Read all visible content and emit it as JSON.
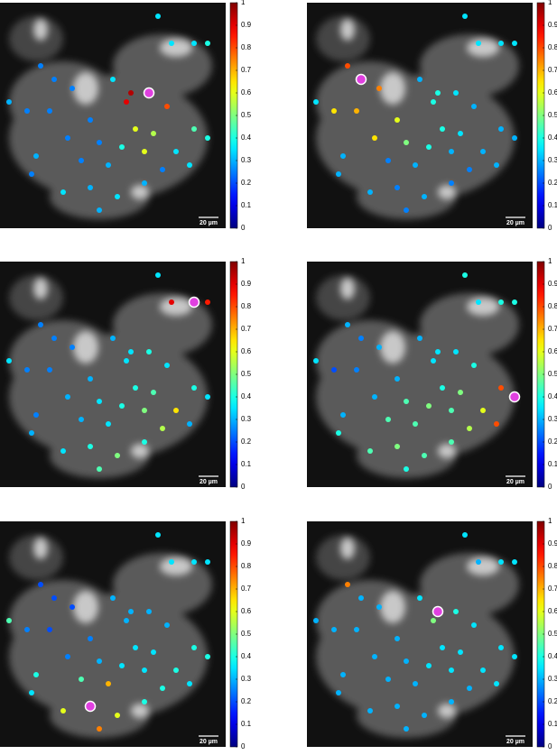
{
  "cells": {
    "xlim": [
      0,
      250
    ],
    "ylim": [
      0,
      250
    ],
    "x": [
      175,
      190,
      215,
      230,
      60,
      80,
      125,
      140,
      165,
      185,
      30,
      55,
      100,
      150,
      170,
      215,
      230,
      75,
      110,
      135,
      160,
      195,
      10,
      40,
      90,
      120,
      180,
      210,
      70,
      100,
      130,
      160,
      110,
      35,
      145,
      45
    ],
    "y": [
      15,
      45,
      45,
      45,
      85,
      95,
      85,
      110,
      100,
      115,
      120,
      120,
      130,
      140,
      145,
      140,
      150,
      150,
      155,
      160,
      165,
      165,
      110,
      170,
      175,
      180,
      185,
      180,
      210,
      205,
      215,
      200,
      230,
      190,
      100,
      70
    ]
  },
  "chart_data": [
    {
      "type": "scatter",
      "colormap": "jet",
      "clim": [
        0,
        1
      ],
      "cticks": [
        0,
        0.1,
        0.2,
        0.3,
        0.4,
        0.5,
        0.6,
        0.7,
        0.8,
        0.9,
        1
      ],
      "scalebar_label": "20 µm",
      "reference": 8,
      "values": [
        0.35,
        0.35,
        0.35,
        0.4,
        0.25,
        0.25,
        0.35,
        0.9,
        1,
        0.8,
        0.25,
        0.25,
        0.25,
        0.6,
        0.55,
        0.45,
        0.4,
        0.25,
        0.25,
        0.4,
        0.6,
        0.35,
        0.3,
        0.3,
        0.25,
        0.3,
        0.25,
        0.35,
        0.35,
        0.3,
        0.35,
        0.3,
        0.3,
        0.25,
        0.95,
        0.25
      ]
    },
    {
      "type": "scatter",
      "colormap": "jet",
      "clim": [
        0,
        1
      ],
      "cticks": [
        0,
        0.1,
        0.2,
        0.3,
        0.4,
        0.5,
        0.6,
        0.7,
        0.8,
        0.9,
        1
      ],
      "scalebar_label": "20 µm",
      "reference": 4,
      "values": [
        0.35,
        0.35,
        0.35,
        0.35,
        1,
        0.75,
        0.3,
        0.4,
        0.35,
        0.3,
        0.65,
        0.7,
        0.6,
        0.4,
        0.35,
        0.3,
        0.3,
        0.65,
        0.5,
        0.4,
        0.3,
        0.3,
        0.35,
        0.3,
        0.25,
        0.3,
        0.25,
        0.3,
        0.3,
        0.25,
        0.3,
        0.25,
        0.25,
        0.3,
        0.4,
        0.8
      ]
    },
    {
      "type": "scatter",
      "colormap": "jet",
      "clim": [
        0,
        1
      ],
      "cticks": [
        0,
        0.1,
        0.2,
        0.3,
        0.4,
        0.5,
        0.6,
        0.7,
        0.8,
        0.9,
        1
      ],
      "scalebar_label": "20 µm",
      "reference": 2,
      "values": [
        0.35,
        0.9,
        1,
        0.85,
        0.25,
        0.25,
        0.3,
        0.35,
        0.4,
        0.35,
        0.25,
        0.25,
        0.3,
        0.4,
        0.45,
        0.4,
        0.35,
        0.3,
        0.35,
        0.4,
        0.5,
        0.65,
        0.35,
        0.25,
        0.3,
        0.35,
        0.55,
        0.3,
        0.35,
        0.4,
        0.5,
        0.4,
        0.45,
        0.3,
        0.35,
        0.25
      ]
    },
    {
      "type": "scatter",
      "colormap": "jet",
      "clim": [
        0,
        1
      ],
      "cticks": [
        0,
        0.1,
        0.2,
        0.3,
        0.4,
        0.5,
        0.6,
        0.7,
        0.8,
        0.9,
        1
      ],
      "scalebar_label": "20 µm",
      "reference": 16,
      "values": [
        0.4,
        0.35,
        0.4,
        0.4,
        0.25,
        0.3,
        0.3,
        0.35,
        0.35,
        0.4,
        0.2,
        0.25,
        0.3,
        0.4,
        0.5,
        0.8,
        1,
        0.3,
        0.45,
        0.5,
        0.45,
        0.6,
        0.35,
        0.3,
        0.45,
        0.45,
        0.55,
        0.8,
        0.45,
        0.5,
        0.45,
        0.45,
        0.4,
        0.4,
        0.35,
        0.3
      ]
    },
    {
      "type": "scatter",
      "colormap": "jet",
      "clim": [
        0,
        1
      ],
      "cticks": [
        0,
        0.1,
        0.2,
        0.3,
        0.4,
        0.5,
        0.6,
        0.7,
        0.8,
        0.9,
        1
      ],
      "scalebar_label": "20 µm",
      "reference": 29,
      "values": [
        0.35,
        0.35,
        0.35,
        0.35,
        0.2,
        0.2,
        0.3,
        0.3,
        0.3,
        0.3,
        0.25,
        0.2,
        0.25,
        0.35,
        0.35,
        0.4,
        0.4,
        0.25,
        0.3,
        0.35,
        0.35,
        0.4,
        0.45,
        0.4,
        0.45,
        0.7,
        0.4,
        0.35,
        0.6,
        1,
        0.6,
        0.4,
        0.75,
        0.35,
        0.3,
        0.2
      ]
    },
    {
      "type": "scatter",
      "colormap": "jet",
      "clim": [
        0,
        1
      ],
      "cticks": [
        0,
        0.1,
        0.2,
        0.3,
        0.4,
        0.5,
        0.6,
        0.7,
        0.8,
        0.9,
        1
      ],
      "scalebar_label": "20 µm",
      "reference": 34,
      "values": [
        0.35,
        0.3,
        0.35,
        0.35,
        0.3,
        0.3,
        0.35,
        0.5,
        0.4,
        0.35,
        0.3,
        0.3,
        0.3,
        0.35,
        0.35,
        0.35,
        0.35,
        0.3,
        0.3,
        0.35,
        0.35,
        0.35,
        0.3,
        0.3,
        0.3,
        0.3,
        0.3,
        0.35,
        0.3,
        0.3,
        0.3,
        0.3,
        0.3,
        0.3,
        1,
        0.75
      ]
    }
  ]
}
